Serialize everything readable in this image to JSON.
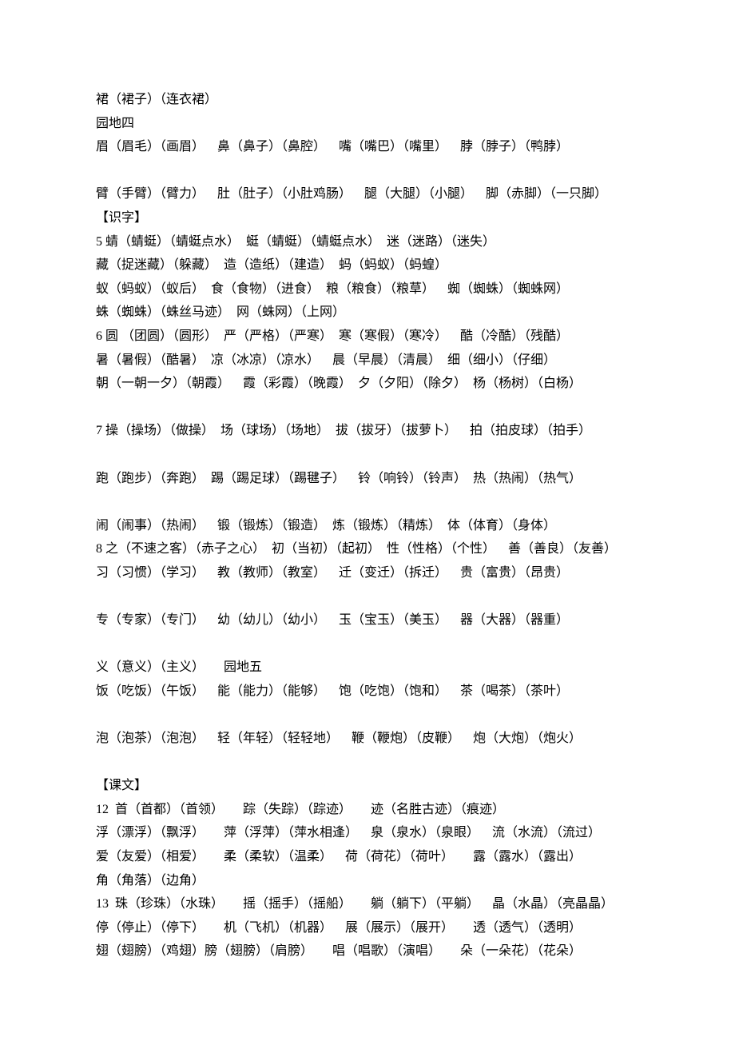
{
  "lines": [
    "裙（裙子）（连衣裙）",
    "园地四",
    "眉（眉毛）（画眉）    鼻（鼻子）（鼻腔）    嘴（嘴巴）（嘴里）    脖（脖子）（鸭脖）",
    "",
    "臂（手臂）（臂力）    肚（肚子）（小肚鸡肠）    腿（大腿）（小腿）    脚（赤脚）（一只脚）",
    "【识字】",
    "5 蜻（蜻蜓）（蜻蜓点水）  蜓（蜻蜓）（蜻蜓点水）  迷（迷路）（迷失）",
    "藏（捉迷藏）（躲藏）  造（造纸）（建造）  蚂（蚂蚁）（蚂蝗）",
    "蚁（蚂蚁）（蚁后）  食（食物）（进食）  粮（粮食）（粮草）    蜘（蜘蛛）（蜘蛛网）",
    "蛛（蜘蛛）（蛛丝马迹）  网（蛛网）（上网）",
    "6 圆 （团圆）（圆形）  严（严格）（严寒）  寒（寒假）（寒冷）    酷（冷酷）（残酷）",
    "暑（暑假）（酷暑）  凉（冰凉）（凉水）    晨（早晨）（清晨）  细（细小）（仔细）",
    "朝（一朝一夕）（朝霞）    霞（彩霞）（晚霞）  夕（夕阳）（除夕）  杨（杨树）（白杨）",
    "",
    "7 操（操场）（做操）  场（球场）（场地）  拔（拔牙）（拔萝卜）    拍（拍皮球）（拍手）",
    "",
    "跑（跑步）（奔跑）  踢（踢足球）（踢毽子）    铃（响铃）（铃声）  热（热闹）（热气）",
    "",
    "闹（闹事）（热闹）    锻（锻炼）（锻造）  炼（锻炼）（精炼）  体（体育）（身体）",
    "8 之（不速之客）（赤子之心）  初（当初）（起初）  性（性格）（个性）    善（善良）（友善）",
    "习（习惯）（学习）    教（教师）（教室）    迁（变迁）（拆迁）    贵（富贵）（昂贵）",
    "",
    "专（专家）（专门）    幼（幼儿）（幼小）    玉（宝玉）（美玉）    器（大器）（器重）",
    "",
    "义（意义）（主义）      园地五",
    "饭（吃饭）（午饭）    能（能力）（能够）    饱（吃饱）（饱和）    茶（喝茶）（茶叶）",
    "",
    "泡（泡茶）（泡泡）    轻（年轻）（轻轻地）    鞭（鞭炮）（皮鞭）    炮（大炮）（炮火）",
    "",
    "【课文】",
    "12  首（首都）（首领）      踪（失踪）（踪迹）      迹（名胜古迹）（痕迹）",
    "浮（漂浮）（飘浮）      萍（浮萍）（萍水相逢）    泉（泉水）（泉眼）    流（水流）（流过）",
    "爱（友爱）（相爱）      柔（柔软）（温柔）    荷（荷花）（荷叶）      露（露水）（露出）",
    "角（角落）（边角）",
    "13  珠（珍珠）（水珠）      摇（摇手）（摇船）      躺（躺下）（平躺）    晶（水晶）（亮晶晶）",
    "停（停止）（停下）      机（飞机）（机器）    展（展示）（展开）      透（透气）（透明）",
    "翅（翅膀）（鸡翅）膀（翅膀）（肩膀）      唱（唱歌）（演唱）      朵（一朵花）（花朵）"
  ]
}
